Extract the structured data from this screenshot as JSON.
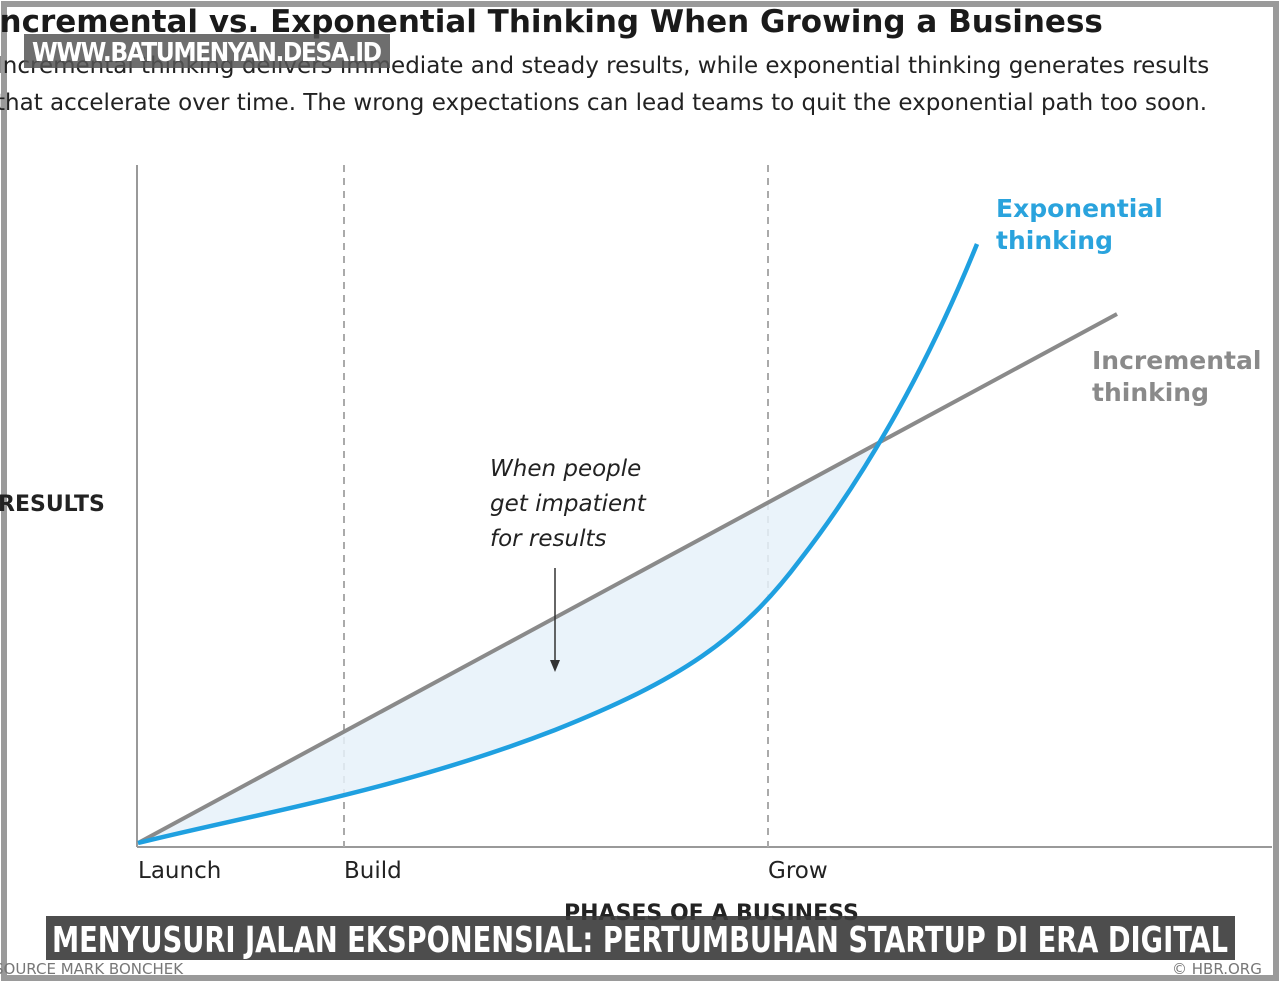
{
  "header": {
    "title": "Incremental vs. Exponential Thinking When Growing a Business",
    "subtitle": [
      "Incremental thinking delivers immediate and steady results, while exponential thinking generates results",
      "that accelerate over time. The wrong expectations can lead teams to quit the exponential path too soon."
    ]
  },
  "watermark": "WWW.BATUMENYAN.DESA.ID",
  "diagram": {
    "y_axis_label": "RESULTS",
    "x_axis_label": "PHASES OF A BUSINESS",
    "phases": [
      "Launch",
      "Build",
      "Grow"
    ],
    "curves": {
      "exponential": [
        "Exponential",
        "thinking"
      ],
      "incremental": [
        "Incremental",
        "thinking"
      ]
    },
    "annotation": [
      "When people",
      "get impatient",
      "for results"
    ]
  },
  "footer": {
    "source": "SOURCE MARK BONCHEK",
    "credit": "© HBR.ORG"
  },
  "caption": "MENYUSURI JALAN EKSPONENSIAL: PERTUMBUHAN STARTUP DI ERA DIGITAL"
}
